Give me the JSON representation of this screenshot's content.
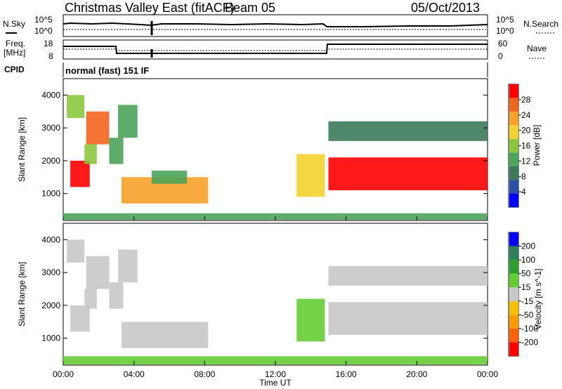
{
  "header": {
    "radar": "Christmas Valley East (fitACF)",
    "beam": "Beam 05",
    "date": "05/Oct/2013",
    "cpid_label": "CPID",
    "cpid_value": "normal (fast) 151 IF"
  },
  "noise_panel": {
    "left_label": "N.Sky",
    "left_ticks": [
      "10^5",
      "10^0"
    ],
    "right_label": "N.Search",
    "right_ticks": [
      "10^5",
      "10^0"
    ]
  },
  "freq_panel": {
    "left_label_1": "Freq.",
    "left_label_2": "[MHz]",
    "left_ticks": [
      "18",
      "8"
    ],
    "right_label": "Nave",
    "right_ticks": [
      "60",
      "0"
    ]
  },
  "colors": {
    "power": [
      "#0000ff",
      "#2a4fa8",
      "#3b7a5a",
      "#4ca35a",
      "#8cc63f",
      "#f2d22e",
      "#f7a12a",
      "#f2651e",
      "#ff0000"
    ],
    "velocity": [
      "#ff0000",
      "#ff6000",
      "#ff9a00",
      "#f2c200",
      "#c8c8c8",
      "#66cc33",
      "#2e9e2e",
      "#2d7f5a",
      "#0000ff"
    ]
  },
  "chart_data": [
    {
      "type": "heatmap",
      "title": "Power",
      "ylabel": "Slant Range [km]",
      "xlabel": "",
      "colorbar_label": "Power [dB]",
      "colorbar_ticks": [
        "4",
        "8",
        "12",
        "16",
        "20",
        "24",
        "28"
      ],
      "clim": [
        0,
        30
      ],
      "ylim": [
        180,
        4500
      ],
      "yticks": [
        "1000",
        "2000",
        "3000",
        "4000"
      ],
      "xlim": [
        "00:00",
        "24:00"
      ],
      "grid": false,
      "regions": [
        {
          "t": [
            0.4,
            1.5
          ],
          "r": [
            1200,
            2000
          ],
          "level": 27
        },
        {
          "t": [
            0.2,
            1.2
          ],
          "r": [
            3300,
            4000
          ],
          "level": 14
        },
        {
          "t": [
            1.3,
            2.6
          ],
          "r": [
            2500,
            3500
          ],
          "level": 24
        },
        {
          "t": [
            1.2,
            1.9
          ],
          "r": [
            1900,
            2500
          ],
          "level": 16
        },
        {
          "t": [
            2.6,
            3.4
          ],
          "r": [
            1900,
            2700
          ],
          "level": 12
        },
        {
          "t": [
            3.1,
            4.2
          ],
          "r": [
            2700,
            3700
          ],
          "level": 10
        },
        {
          "t": [
            3.3,
            8.2
          ],
          "r": [
            700,
            1500
          ],
          "level": 22
        },
        {
          "t": [
            5.0,
            7.0
          ],
          "r": [
            1300,
            1700
          ],
          "level": 10
        },
        {
          "t": [
            0,
            24
          ],
          "r": [
            200,
            400
          ],
          "level": 10
        },
        {
          "t": [
            13.2,
            14.8
          ],
          "r": [
            900,
            2200
          ],
          "level": 18
        },
        {
          "t": [
            15.0,
            24
          ],
          "r": [
            1100,
            2100
          ],
          "level": 27
        },
        {
          "t": [
            15.0,
            24
          ],
          "r": [
            2600,
            3200
          ],
          "level": 8
        }
      ]
    },
    {
      "type": "heatmap",
      "title": "Velocity",
      "ylabel": "Slant Range [km]",
      "xlabel": "Time UT",
      "colorbar_label": "Velocity [m s^-1]",
      "colorbar_ticks": [
        "-200",
        "-100",
        "-50",
        "-15",
        "15",
        "50",
        "100",
        "200"
      ],
      "clim": [
        -250,
        250
      ],
      "ylim": [
        180,
        4500
      ],
      "yticks": [
        "1000",
        "2000",
        "3000",
        "4000"
      ],
      "xticks": [
        "00:00",
        "04:00",
        "08:00",
        "12:00",
        "16:00",
        "20:00",
        "00:00"
      ],
      "xlim": [
        "00:00",
        "24:00"
      ],
      "grid": false,
      "regions": [
        {
          "t": [
            0.4,
            1.5
          ],
          "r": [
            1200,
            2000
          ],
          "level": 0
        },
        {
          "t": [
            0.2,
            1.2
          ],
          "r": [
            3300,
            4000
          ],
          "level": 0
        },
        {
          "t": [
            1.3,
            2.6
          ],
          "r": [
            2500,
            3500
          ],
          "level": 0
        },
        {
          "t": [
            1.2,
            1.9
          ],
          "r": [
            1900,
            2500
          ],
          "level": 0
        },
        {
          "t": [
            2.6,
            3.4
          ],
          "r": [
            1900,
            2700
          ],
          "level": 0
        },
        {
          "t": [
            3.1,
            4.2
          ],
          "r": [
            2700,
            3700
          ],
          "level": 0
        },
        {
          "t": [
            3.3,
            8.2
          ],
          "r": [
            700,
            1500
          ],
          "level": 0
        },
        {
          "t": [
            0,
            24
          ],
          "r": [
            200,
            450
          ],
          "level": 40
        },
        {
          "t": [
            13.2,
            14.8
          ],
          "r": [
            900,
            2200
          ],
          "level": 60
        },
        {
          "t": [
            15.0,
            24
          ],
          "r": [
            1100,
            2100
          ],
          "level": 0
        },
        {
          "t": [
            15.0,
            24
          ],
          "r": [
            2600,
            3200
          ],
          "level": 0
        }
      ]
    }
  ]
}
